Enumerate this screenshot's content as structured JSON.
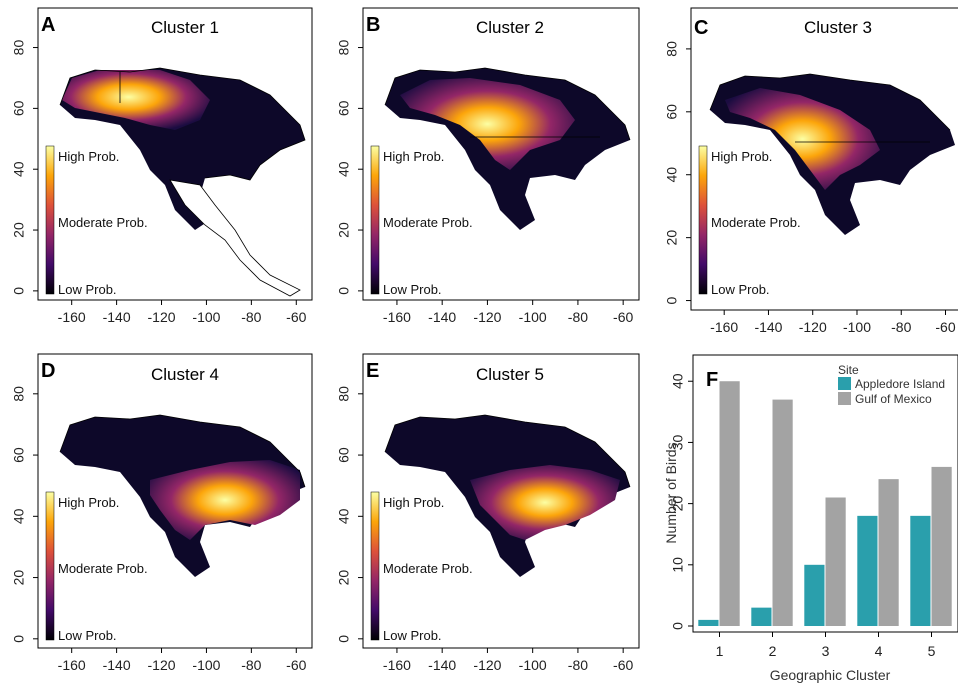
{
  "figure": {
    "map_panels": [
      {
        "letter": "A",
        "title": "Cluster 1",
        "core": [
          -148,
          64
        ],
        "region": "northwest"
      },
      {
        "letter": "B",
        "title": "Cluster 2",
        "core": [
          -120,
          55
        ],
        "region": "west-central"
      },
      {
        "letter": "C",
        "title": "Cluster 3",
        "core": [
          -110,
          50
        ],
        "region": "central"
      },
      {
        "letter": "D",
        "title": "Cluster 4",
        "core": [
          -95,
          42
        ],
        "region": "central-east"
      },
      {
        "letter": "E",
        "title": "Cluster 5",
        "core": [
          -100,
          38
        ],
        "region": "south-central"
      }
    ],
    "map_axes": {
      "x_ticks": [
        -160,
        -140,
        -120,
        -100,
        -80,
        -60
      ],
      "x_tick_labels": [
        "-160",
        "-140",
        "-120",
        "-100",
        "-80",
        "-60"
      ],
      "y_ticks": [
        0,
        20,
        40,
        60,
        80
      ],
      "y_tick_labels": [
        "0",
        "20",
        "40",
        "60",
        "80"
      ],
      "xlim": [
        -175,
        -53
      ],
      "ylim": [
        -3,
        93
      ]
    },
    "probability_legend": {
      "high": "High Prob.",
      "moderate": "Moderate Prob.",
      "low": "Low Prob.",
      "colors": [
        "#000004",
        "#420a68",
        "#932667",
        "#dd513a",
        "#fca50a",
        "#fcffa4"
      ]
    }
  },
  "chart_data": [
    {
      "type": "bar",
      "panel": "F",
      "title": "",
      "categories": [
        "1",
        "2",
        "3",
        "4",
        "5"
      ],
      "series": [
        {
          "name": "Appledore Island",
          "color": "#2a9fac",
          "values": [
            1,
            3,
            10,
            18,
            18
          ]
        },
        {
          "name": "Gulf of Mexico",
          "color": "#a3a3a3",
          "values": [
            40,
            37,
            21,
            24,
            26
          ]
        }
      ],
      "xlabel": "Geographic Cluster",
      "ylabel": "Number of Birds",
      "legend_title": "Site",
      "y_ticks": [
        0,
        10,
        20,
        30,
        40
      ],
      "y_tick_labels": [
        "0",
        "10",
        "20",
        "30",
        "40"
      ],
      "ylim": [
        0,
        42
      ],
      "grid": false,
      "legend_position": "top-right"
    }
  ]
}
